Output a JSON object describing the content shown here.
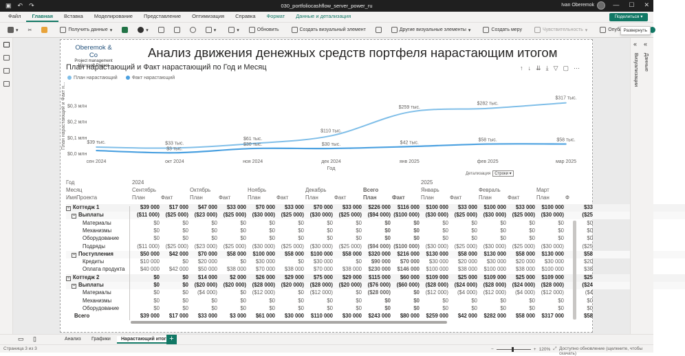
{
  "titlebar": {
    "document": "030_portfoliocashflow_server_power_ru",
    "user": "Ivan Oberemok"
  },
  "menu": {
    "tabs": [
      "Файл",
      "Главная",
      "Вставка",
      "Моделирование",
      "Представление",
      "Оптимизация",
      "Справка",
      "Формат",
      "Данные и детализация"
    ],
    "share": "Поделиться"
  },
  "ribbon": {
    "get_data": "Получить данные",
    "refresh": "Обновить",
    "new_visual": "Создать визуальный элемент",
    "more_visuals": "Другие визуальные элементы",
    "new_measure": "Создать меру",
    "sensitivity": "Чувствительность",
    "publish": "Опубликовать"
  },
  "report": {
    "logo_name": "Oberemok & Co",
    "logo_sub1": "Project management",
    "logo_sub2": "Microsoft Project",
    "title": "Анализ движения денежных средств портфеля нарастающим итогом",
    "chart_title": "План нарастающий и Факт нарастающий по Год и Месяц",
    "drill_label": "Детализация",
    "drill_value": "Строки"
  },
  "chart_data": {
    "type": "line",
    "title": "План нарастающий и Факт нарастающий по Год и Месяц",
    "xlabel": "Год",
    "ylabel": "План нарастающий и Факт н...",
    "categories": [
      "сен 2024",
      "окт 2024",
      "ноя 2024",
      "дек 2024",
      "янв 2025",
      "фев 2025",
      "мар 2025"
    ],
    "yticks": [
      "$0,0 млн",
      "$0,1 млн",
      "$0,2 млн",
      "$0,3 млн"
    ],
    "ylim": [
      0,
      0.35
    ],
    "series": [
      {
        "name": "План нарастающий",
        "color": "#7fbee8",
        "values": [
          39,
          33,
          61,
          110,
          259,
          282,
          317
        ],
        "labels": [
          "$39 тыс.",
          "$33 тыс.",
          "$61 тыс.",
          "$110 тыс.",
          "$259 тыс.",
          "$282 тыс.",
          "$317 тыс."
        ]
      },
      {
        "name": "Факт нарастающий",
        "color": "#4aa0e0",
        "values": [
          17,
          3,
          30,
          30,
          42,
          58,
          58
        ],
        "labels": [
          "",
          "$3 тыс.",
          "$30 тыс.",
          "$30 тыс.",
          "$42 тыс.",
          "$58 тыс.",
          "$58 тыс."
        ]
      }
    ],
    "legend": "top-left",
    "grid": false
  },
  "matrix": {
    "header_rows": [
      [
        "Год",
        "2024",
        "",
        "",
        "",
        "",
        "",
        "",
        "",
        "",
        "",
        "2025",
        "",
        "",
        "",
        "",
        ""
      ],
      [
        "Месяц",
        "Сентябрь",
        "",
        "Октябрь",
        "",
        "Ноябрь",
        "",
        "Декабрь",
        "",
        "Всего",
        "",
        "Январь",
        "",
        "Февраль",
        "",
        "Март",
        ""
      ],
      [
        "ИмяПроекта",
        "План",
        "Факт",
        "План",
        "Факт",
        "План",
        "Факт",
        "План",
        "Факт",
        "План",
        "Факт",
        "План",
        "Факт",
        "План",
        "Факт",
        "План",
        "Ф"
      ]
    ],
    "rows": [
      {
        "label": "Коттедж 1",
        "level": 1,
        "expand": "⊟",
        "bold": true,
        "cells": [
          "$39 000",
          "$17 000",
          "$47 000",
          "$33 000",
          "$70 000",
          "$33 000",
          "$70 000",
          "$33 000",
          "$226 000",
          "$116 000",
          "$100 000",
          "$33 000",
          "$100 000",
          "$33 000",
          "$100 000",
          "$33"
        ]
      },
      {
        "label": "Выплаты",
        "level": 2,
        "expand": "⊟",
        "bold": true,
        "cells": [
          "($11 000)",
          "($25 000)",
          "($23 000)",
          "($25 000)",
          "($30 000)",
          "($25 000)",
          "($30 000)",
          "($25 000)",
          "($94 000)",
          "($100 000)",
          "($30 000)",
          "($25 000)",
          "($30 000)",
          "($25 000)",
          "($30 000)",
          "($25"
        ]
      },
      {
        "label": "Материалы",
        "level": 3,
        "cells": [
          "$0",
          "$0",
          "$0",
          "$0",
          "$0",
          "$0",
          "$0",
          "$0",
          "$0",
          "$0",
          "$0",
          "$0",
          "$0",
          "$0",
          "$0",
          "$0"
        ]
      },
      {
        "label": "Механизмы",
        "level": 3,
        "cells": [
          "$0",
          "$0",
          "$0",
          "$0",
          "$0",
          "$0",
          "$0",
          "$0",
          "$0",
          "$0",
          "$0",
          "$0",
          "$0",
          "$0",
          "$0",
          "$0"
        ]
      },
      {
        "label": "Оборудование",
        "level": 3,
        "cells": [
          "$0",
          "$0",
          "$0",
          "$0",
          "$0",
          "$0",
          "$0",
          "$0",
          "$0",
          "$0",
          "$0",
          "$0",
          "$0",
          "$0",
          "$0",
          "$0"
        ]
      },
      {
        "label": "Подряды",
        "level": 3,
        "cells": [
          "($11 000)",
          "($25 000)",
          "($23 000)",
          "($25 000)",
          "($30 000)",
          "($25 000)",
          "($30 000)",
          "($25 000)",
          "($94 000)",
          "($100 000)",
          "($30 000)",
          "($25 000)",
          "($30 000)",
          "($25 000)",
          "($30 000)",
          "($25"
        ]
      },
      {
        "label": "Поступления",
        "level": 2,
        "expand": "⊟",
        "bold": true,
        "cells": [
          "$50 000",
          "$42 000",
          "$70 000",
          "$58 000",
          "$100 000",
          "$58 000",
          "$100 000",
          "$58 000",
          "$320 000",
          "$216 000",
          "$130 000",
          "$58 000",
          "$130 000",
          "$58 000",
          "$130 000",
          "$58"
        ]
      },
      {
        "label": "Кредиты",
        "level": 3,
        "cells": [
          "$10 000",
          "$0",
          "$20 000",
          "$0",
          "$30 000",
          "$0",
          "$30 000",
          "$0",
          "$90 000",
          "$70 000",
          "$30 000",
          "$20 000",
          "$30 000",
          "$20 000",
          "$30 000",
          "$20"
        ]
      },
      {
        "label": "Оплата продукта",
        "level": 3,
        "cells": [
          "$40 000",
          "$42 000",
          "$50 000",
          "$38 000",
          "$70 000",
          "$38 000",
          "$70 000",
          "$38 000",
          "$230 000",
          "$146 000",
          "$100 000",
          "$38 000",
          "$100 000",
          "$38 000",
          "$100 000",
          "$38"
        ]
      },
      {
        "label": "Коттедж 2",
        "level": 1,
        "expand": "⊟",
        "bold": true,
        "cells": [
          "$0",
          "$0",
          "$14 000",
          "$2 000",
          "$26 000",
          "$29 000",
          "$75 000",
          "$29 000",
          "$115 000",
          "$60 000",
          "$109 000",
          "$25 000",
          "$109 000",
          "$25 000",
          "$109 000",
          "$25"
        ]
      },
      {
        "label": "Выплаты",
        "level": 2,
        "expand": "⊟",
        "bold": true,
        "cells": [
          "$0",
          "$0",
          "($20 000)",
          "($20 000)",
          "($28 000)",
          "($20 000)",
          "($28 000)",
          "($20 000)",
          "($76 000)",
          "($60 000)",
          "($28 000)",
          "($24 000)",
          "($28 000)",
          "($24 000)",
          "($28 000)",
          "($24"
        ]
      },
      {
        "label": "Материалы",
        "level": 3,
        "cells": [
          "$0",
          "$0",
          "($4 000)",
          "$0",
          "($12 000)",
          "$0",
          "($12 000)",
          "$0",
          "($28 000)",
          "$0",
          "($12 000)",
          "($4 000)",
          "($12 000)",
          "($4 000)",
          "($12 000)",
          "($4"
        ]
      },
      {
        "label": "Механизмы",
        "level": 3,
        "cells": [
          "$0",
          "$0",
          "$0",
          "$0",
          "$0",
          "$0",
          "$0",
          "$0",
          "$0",
          "$0",
          "$0",
          "$0",
          "$0",
          "$0",
          "$0",
          "$0"
        ]
      },
      {
        "label": "Оборудование",
        "level": 3,
        "cells": [
          "$0",
          "$0",
          "$0",
          "$0",
          "$0",
          "$0",
          "$0",
          "$0",
          "$0",
          "$0",
          "$0",
          "$0",
          "$0",
          "$0",
          "$0",
          "$0"
        ]
      },
      {
        "label": "Всего",
        "level": 0,
        "bold": true,
        "cells": [
          "$39 000",
          "$17 000",
          "$33 000",
          "$3 000",
          "$61 000",
          "$30 000",
          "$110 000",
          "$30 000",
          "$243 000",
          "$80 000",
          "$259 000",
          "$42 000",
          "$282 000",
          "$58 000",
          "$317 000",
          "$58"
        ]
      }
    ]
  },
  "rightpane": {
    "tab_data": "Данные",
    "tab_viz": "Визуализации",
    "tooltip": "Развернуть"
  },
  "pages": {
    "tabs": [
      "Анализ",
      "Графики",
      "Нарастающий итог"
    ],
    "active": 2
  },
  "status": {
    "page": "Страница 3 из 3",
    "zoom": "120%",
    "update": "Доступно обновление (щелкните, чтобы скачать)"
  }
}
